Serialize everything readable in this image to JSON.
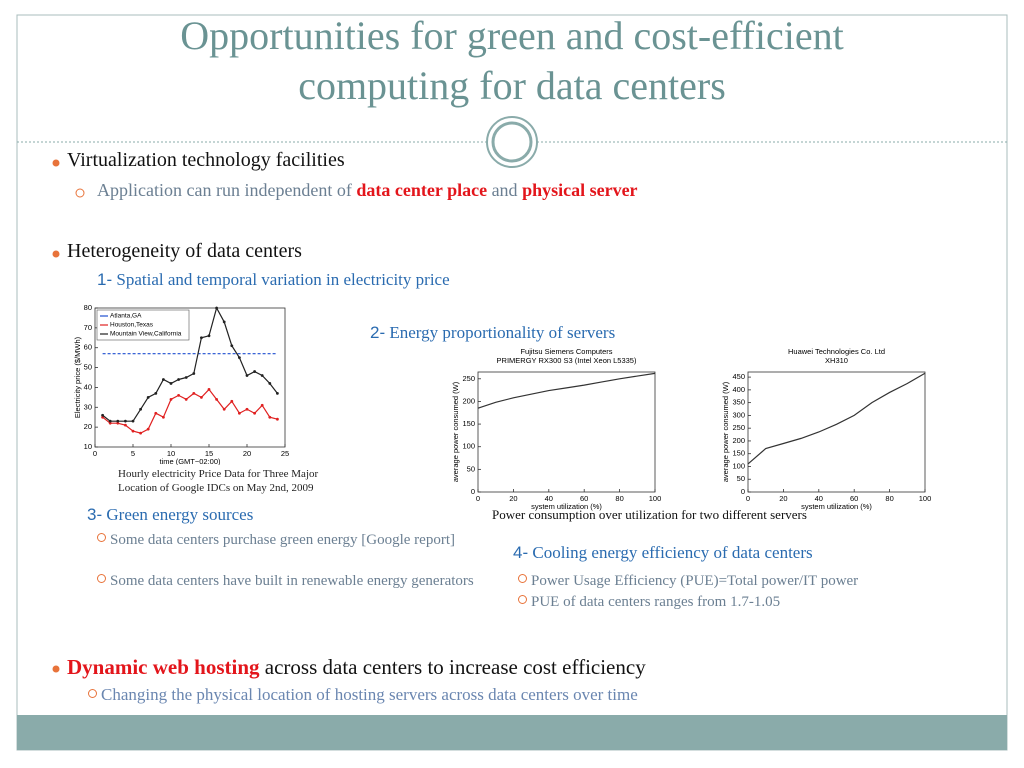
{
  "title": [
    "Opportunities for green and cost-efficient",
    "computing for data centers"
  ],
  "virtualization": {
    "heading": "Virtualization technology facilities",
    "detail": [
      "Application can run independent of",
      "data center place",
      "and",
      "physical server"
    ]
  },
  "heterogeneity": {
    "heading": "Heterogeneity of data centers",
    "items": [
      {
        "number": "1-",
        "text": "Spatial and temporal variation in electricity price"
      },
      {
        "number": "2-",
        "text": "Energy proportionality of servers"
      },
      {
        "number": "3-",
        "text": "Green energy sources",
        "points": [
          "Some data centers purchase green energy [Google report]",
          "Some data centers have built in renewable energy generators"
        ]
      },
      {
        "number": "4-",
        "text": "Cooling energy efficiency of data centers",
        "points": [
          "Power Usage Efficiency (PUE)=Total power/IT power",
          "PUE of data centers ranges from 1.7-1.05"
        ]
      }
    ]
  },
  "price_chart": {
    "caption": [
      "Hourly electricity Price Data for Three Major",
      "Location of Google IDCs on May 2nd, 2009"
    ],
    "chart_data": {
      "type": "line",
      "xlabel": "time (GMT−02:00)",
      "ylabel": "Electricity price ($/MWh)",
      "x": [
        1,
        2,
        3,
        4,
        5,
        6,
        7,
        8,
        9,
        10,
        11,
        12,
        13,
        14,
        15,
        16,
        17,
        18,
        19,
        20,
        21,
        22,
        23,
        24
      ],
      "xlim": [
        0,
        25
      ],
      "xticks": [
        0,
        5,
        10,
        15,
        20,
        25
      ],
      "ylim": [
        10,
        80
      ],
      "yticks": [
        10,
        20,
        30,
        40,
        50,
        60,
        70,
        80
      ],
      "legend": "upper left",
      "series": [
        {
          "name": "Atlanta,GA",
          "color": "#1f4fd0",
          "dash": true,
          "marker": "none",
          "values": [
            57,
            57,
            57,
            57,
            57,
            57,
            57,
            57,
            57,
            57,
            57,
            57,
            57,
            57,
            57,
            57,
            57,
            57,
            57,
            57,
            57,
            57,
            57,
            57
          ]
        },
        {
          "name": "Houston,Texas",
          "color": "#e02020",
          "dash": false,
          "marker": "circle",
          "values": [
            25,
            22,
            22,
            21,
            18,
            17,
            19,
            27,
            25,
            34,
            36,
            34,
            37,
            35,
            39,
            34,
            29,
            33,
            27,
            29,
            27,
            31,
            25,
            24
          ]
        },
        {
          "name": "Mountain View,California",
          "color": "#222222",
          "dash": false,
          "marker": "circle",
          "values": [
            26,
            23,
            23,
            23,
            23,
            29,
            35,
            37,
            44,
            42,
            44,
            45,
            47,
            65,
            66,
            80,
            73,
            61,
            55,
            46,
            48,
            46,
            42,
            37
          ]
        }
      ]
    }
  },
  "power_caption": "Power consumption over utilization for two different servers",
  "power_charts": [
    {
      "chart_data": {
        "type": "line",
        "title": [
          "Fujitsu Siemens Computers",
          "PRIMERGY RX300 S3 (Intel Xeon L5335)"
        ],
        "xlabel": "system utilization (%)",
        "ylabel": "average power consumed (W)",
        "x": [
          0,
          10,
          20,
          30,
          40,
          50,
          60,
          70,
          80,
          90,
          100
        ],
        "xlim": [
          0,
          100
        ],
        "xticks": [
          0,
          20,
          40,
          60,
          80,
          100
        ],
        "ylim": [
          0,
          265
        ],
        "yticks": [
          0,
          50,
          100,
          150,
          200,
          250
        ],
        "color": "#333333",
        "values": [
          185,
          198,
          208,
          216,
          224,
          230,
          236,
          243,
          250,
          256,
          262
        ]
      }
    },
    {
      "chart_data": {
        "type": "line",
        "title": [
          "Huawei Technologies Co. Ltd",
          "XH310"
        ],
        "xlabel": "system utilization (%)",
        "ylabel": "average power consumed (W)",
        "x": [
          0,
          10,
          20,
          30,
          40,
          50,
          60,
          70,
          80,
          90,
          100
        ],
        "xlim": [
          0,
          100
        ],
        "xticks": [
          0,
          20,
          40,
          60,
          80,
          100
        ],
        "ylim": [
          0,
          470
        ],
        "yticks": [
          0,
          50,
          100,
          150,
          200,
          250,
          300,
          350,
          400,
          450
        ],
        "color": "#333333",
        "values": [
          110,
          170,
          190,
          210,
          235,
          265,
          300,
          350,
          390,
          425,
          465
        ]
      }
    }
  ],
  "dynamic_hosting": {
    "heading": [
      "Dynamic web hosting",
      "across data centers to increase cost efficiency"
    ],
    "detail": "Changing the physical location of hosting servers across data centers over time"
  }
}
